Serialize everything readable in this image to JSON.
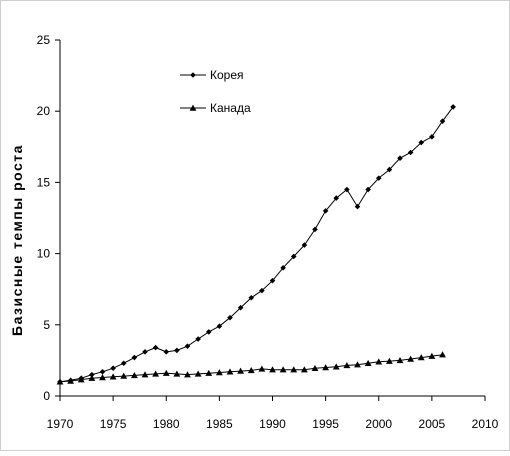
{
  "chart_data": {
    "type": "line",
    "title": "",
    "xlabel": "",
    "ylabel": "Базисные темпы роста",
    "xlim": [
      1970,
      2010
    ],
    "ylim": [
      0,
      25
    ],
    "xticks": [
      "1970",
      "1975",
      "1980",
      "1985",
      "1990",
      "1995",
      "2000",
      "2005",
      "2010"
    ],
    "yticks": [
      "0",
      "5",
      "10",
      "15",
      "20",
      "25"
    ],
    "grid": false,
    "legend_position": "upper-left-inside",
    "series": [
      {
        "name": "Корея",
        "marker": "diamond",
        "color": "#000000",
        "x": [
          1970,
          1971,
          1972,
          1973,
          1974,
          1975,
          1976,
          1977,
          1978,
          1979,
          1980,
          1981,
          1982,
          1983,
          1984,
          1985,
          1986,
          1987,
          1988,
          1989,
          1990,
          1991,
          1992,
          1993,
          1994,
          1995,
          1996,
          1997,
          1998,
          1999,
          2000,
          2001,
          2002,
          2003,
          2004,
          2005,
          2006,
          2007
        ],
        "y": [
          1.0,
          1.1,
          1.25,
          1.5,
          1.7,
          1.95,
          2.3,
          2.7,
          3.1,
          3.4,
          3.1,
          3.2,
          3.5,
          4.0,
          4.5,
          4.9,
          5.5,
          6.2,
          6.9,
          7.4,
          8.1,
          9.0,
          9.8,
          10.6,
          11.7,
          13.0,
          13.9,
          14.5,
          13.3,
          14.5,
          15.3,
          15.9,
          16.7,
          17.1,
          17.8,
          18.2,
          19.3,
          20.3
        ]
      },
      {
        "name": "Канада",
        "marker": "triangle",
        "color": "#000000",
        "x": [
          1970,
          1971,
          1972,
          1973,
          1974,
          1975,
          1976,
          1977,
          1978,
          1979,
          1980,
          1981,
          1982,
          1983,
          1984,
          1985,
          1986,
          1987,
          1988,
          1989,
          1990,
          1991,
          1992,
          1993,
          1994,
          1995,
          1996,
          1997,
          1998,
          1999,
          2000,
          2001,
          2002,
          2003,
          2004,
          2005,
          2006
        ],
        "y": [
          1.0,
          1.05,
          1.15,
          1.25,
          1.3,
          1.35,
          1.4,
          1.45,
          1.5,
          1.55,
          1.6,
          1.55,
          1.5,
          1.55,
          1.6,
          1.65,
          1.7,
          1.75,
          1.8,
          1.9,
          1.85,
          1.85,
          1.85,
          1.85,
          1.95,
          2.0,
          2.05,
          2.15,
          2.2,
          2.3,
          2.4,
          2.45,
          2.5,
          2.6,
          2.7,
          2.8,
          2.9
        ]
      }
    ]
  }
}
